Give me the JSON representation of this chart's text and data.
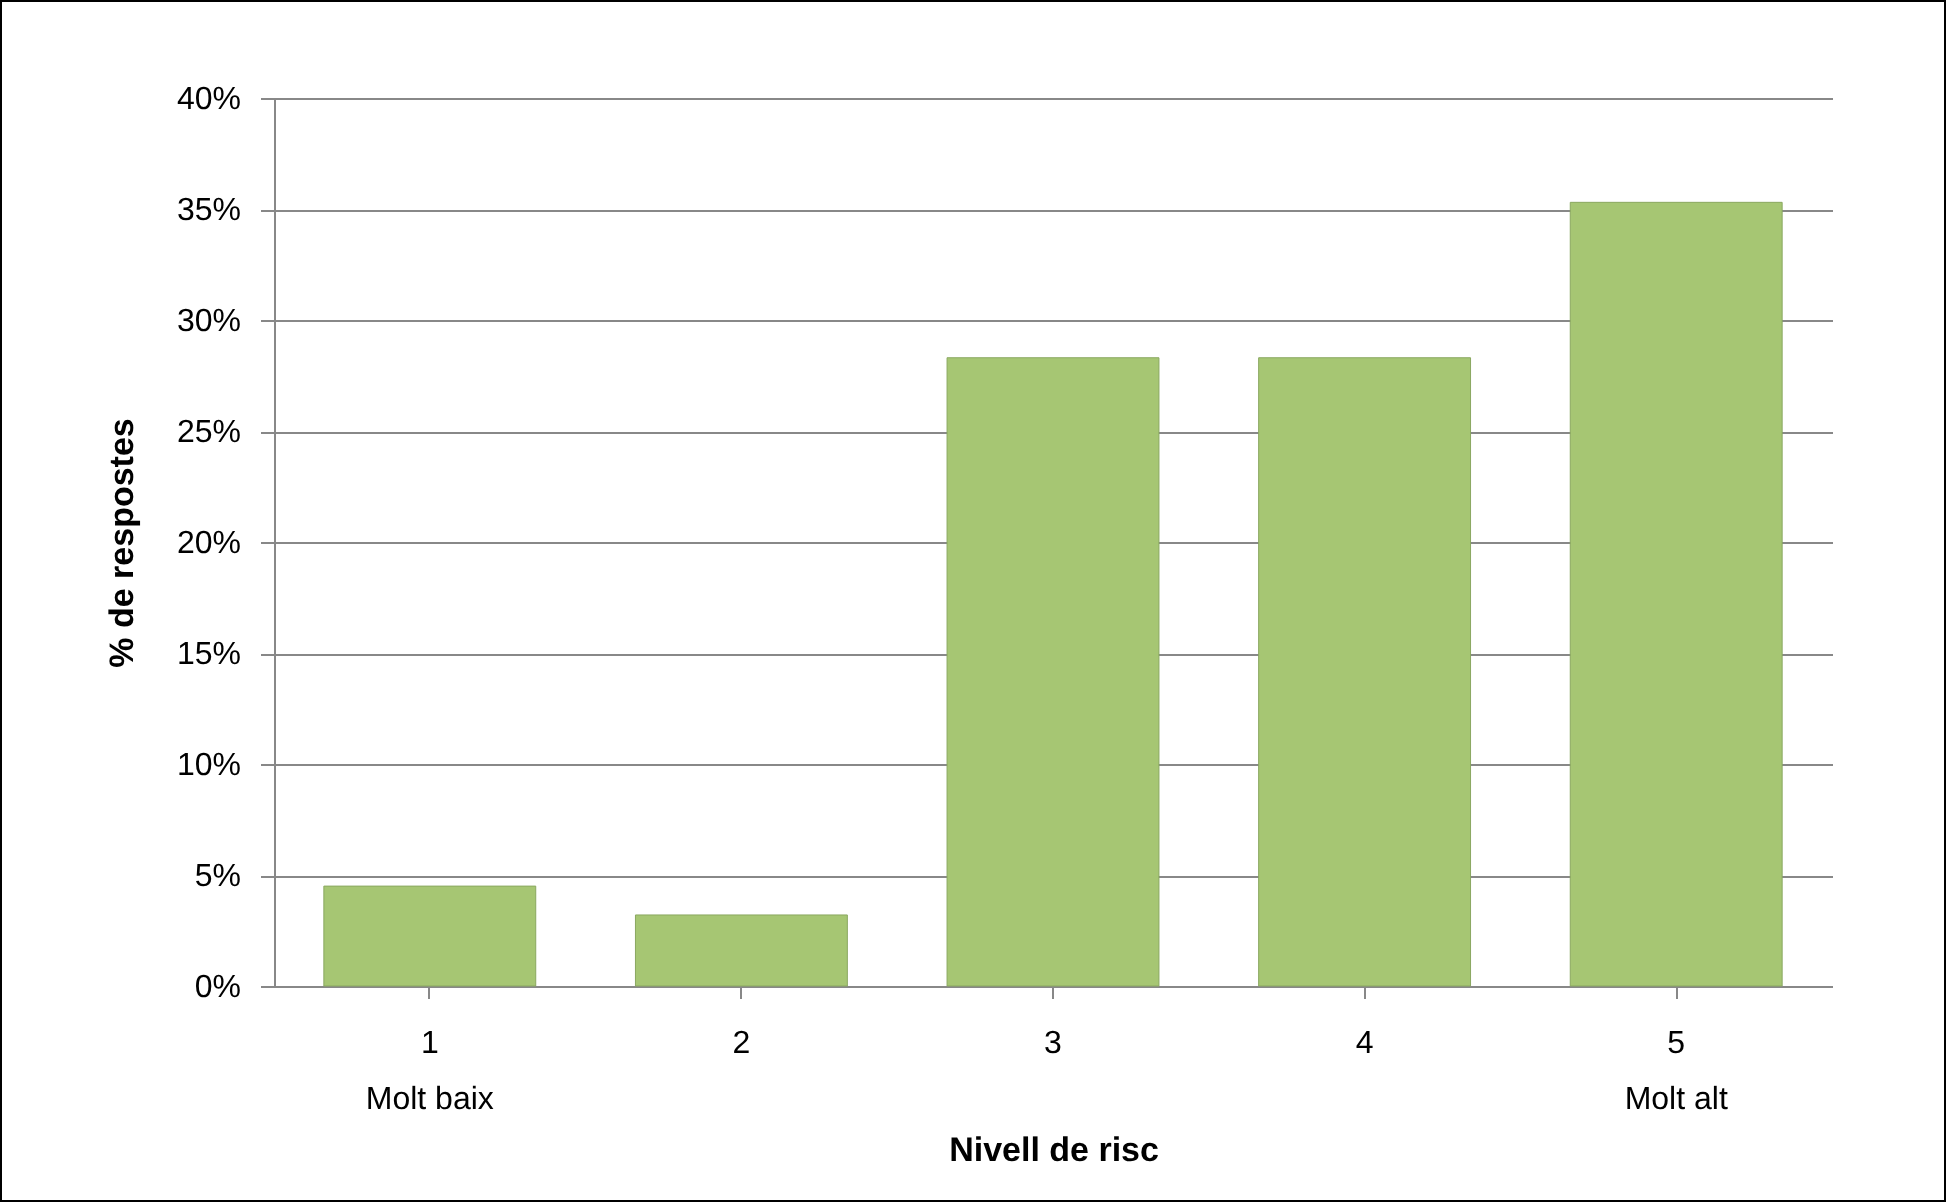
{
  "chart_data": {
    "type": "bar",
    "xlabel": "Nivell de risc",
    "ylabel": "% de respostes",
    "categories": [
      "1\nMolt baix",
      "2",
      "3",
      "4",
      "5\nMolt alt"
    ],
    "values": [
      4.5,
      3.2,
      28.3,
      28.3,
      35.3
    ],
    "color": "#a6c673",
    "ylim": [
      0,
      40
    ],
    "yticks": [
      {
        "value": 0,
        "label": "0%"
      },
      {
        "value": 5,
        "label": "5%"
      },
      {
        "value": 10,
        "label": "10%"
      },
      {
        "value": 15,
        "label": "15%"
      },
      {
        "value": 20,
        "label": "20%"
      },
      {
        "value": 25,
        "label": "25%"
      },
      {
        "value": 30,
        "label": "30%"
      },
      {
        "value": 35,
        "label": "35%"
      },
      {
        "value": 40,
        "label": "40%"
      }
    ],
    "grid": "y"
  }
}
